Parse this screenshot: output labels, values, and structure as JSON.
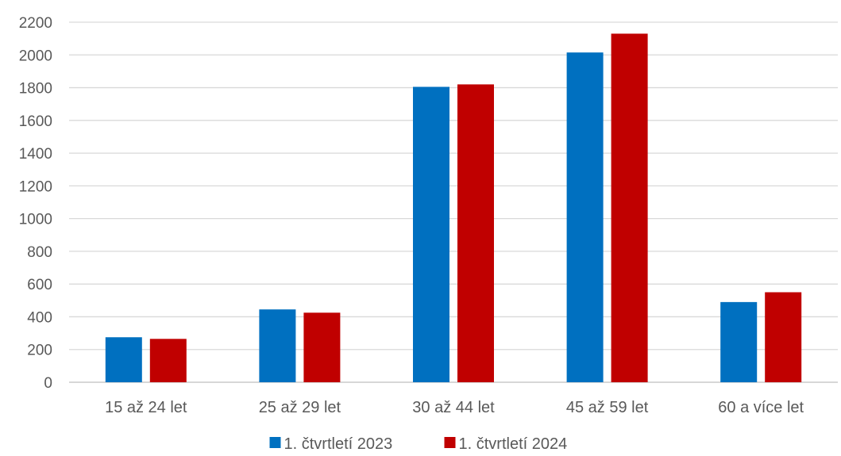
{
  "chart_data": {
    "type": "bar",
    "title": "",
    "xlabel": "",
    "ylabel": "",
    "ylim": [
      0,
      2200
    ],
    "yticks": [
      0,
      200,
      400,
      600,
      800,
      1000,
      1200,
      1400,
      1600,
      1800,
      2000,
      2200
    ],
    "grid": true,
    "legend_position": "bottom",
    "categories": [
      "15 až 24 let",
      "25 až 29 let",
      "30 až 44 let",
      "45 až 59 let",
      "60 a více let"
    ],
    "series": [
      {
        "name": "1. čtvrtletí 2023",
        "color": "#0070c0",
        "values": [
          275,
          445,
          1805,
          2015,
          490
        ]
      },
      {
        "name": "1. čtvrtletí 2024",
        "color": "#c00000",
        "values": [
          265,
          425,
          1820,
          2130,
          550
        ]
      }
    ]
  }
}
